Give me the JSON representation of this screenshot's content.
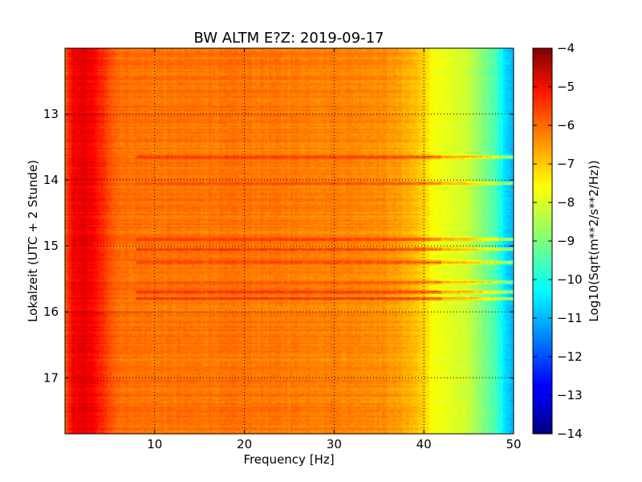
{
  "chart_data": {
    "type": "heatmap",
    "title": "BW ALTM E?Z: 2019-09-17",
    "xlabel": "Frequency [Hz]",
    "ylabel": "Lokalzeit (UTC + 2 Stunde)",
    "colorbar_label": "Log10(Sqrt(m**2/s**2/Hz))",
    "xlim": [
      0,
      50
    ],
    "ylim": [
      12.0,
      17.85
    ],
    "y_inverted": true,
    "x_ticks": [
      10,
      20,
      30,
      40,
      50
    ],
    "x_tick_labels": [
      "10",
      "20",
      "30",
      "40",
      "50"
    ],
    "y_ticks": [
      13,
      14,
      15,
      16,
      17
    ],
    "y_tick_labels": [
      "13",
      "14",
      "15",
      "16",
      "17"
    ],
    "grid": true,
    "colormap": "jet",
    "clim": [
      -14,
      -4
    ],
    "colorbar_ticks": [
      -4,
      -5,
      -6,
      -7,
      -8,
      -9,
      -10,
      -11,
      -12,
      -13,
      -14
    ],
    "colorbar_tick_labels": [
      "−4",
      "−5",
      "−6",
      "−7",
      "−8",
      "−9",
      "−10",
      "−11",
      "−12",
      "−13",
      "−14"
    ],
    "spectrum_profile": {
      "frequency": [
        0,
        1,
        2,
        3,
        4,
        6,
        10,
        20,
        30,
        35,
        38,
        40,
        41,
        45,
        48,
        49,
        50
      ],
      "log10_amplitude": [
        -6.2,
        -5.2,
        -5.0,
        -5.2,
        -5.6,
        -6.3,
        -6.4,
        -6.4,
        -6.5,
        -6.6,
        -6.9,
        -7.3,
        -7.8,
        -8.3,
        -9.5,
        -10.5,
        -11.0
      ]
    },
    "horizontal_bands": [
      {
        "time": 13.65,
        "log10_amplitude": -5.6
      },
      {
        "time": 14.05,
        "log10_amplitude": -6.0
      },
      {
        "time": 14.9,
        "log10_amplitude": -5.8
      },
      {
        "time": 15.05,
        "log10_amplitude": -5.6
      },
      {
        "time": 15.25,
        "log10_amplitude": -5.7
      },
      {
        "time": 15.55,
        "log10_amplitude": -6.1
      },
      {
        "time": 15.7,
        "log10_amplitude": -5.5
      },
      {
        "time": 15.8,
        "log10_amplitude": -5.6
      }
    ]
  }
}
